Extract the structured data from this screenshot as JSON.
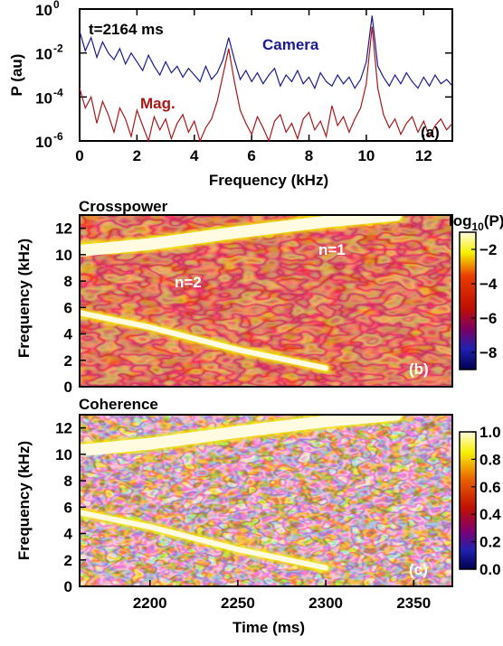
{
  "chart_data": [
    {
      "panel": "(a)",
      "type": "line",
      "annotation": "t=2164 ms",
      "xlabel": "Frequency (kHz)",
      "ylabel": "P (au)",
      "xlim": [
        0,
        13
      ],
      "ylim_log10": [
        -6,
        0
      ],
      "x_ticks": [
        "0",
        "2",
        "4",
        "6",
        "8",
        "10",
        "12"
      ],
      "y_ticks": [
        {
          "base": "10",
          "exp": "0"
        },
        {
          "base": "10",
          "exp": "-2"
        },
        {
          "base": "10",
          "exp": "-4"
        },
        {
          "base": "10",
          "exp": "-6"
        }
      ],
      "scale": "log",
      "series": [
        {
          "name": "Camera",
          "color": "#1a1a8c",
          "x": [
            0,
            0.2,
            0.4,
            0.6,
            0.8,
            1.0,
            1.2,
            1.4,
            1.6,
            1.8,
            2.0,
            2.2,
            2.4,
            2.6,
            2.8,
            3.0,
            3.2,
            3.4,
            3.6,
            3.8,
            4.0,
            4.2,
            4.4,
            4.6,
            4.8,
            5.0,
            5.2,
            5.4,
            5.6,
            5.8,
            6.0,
            6.2,
            6.4,
            6.6,
            6.8,
            7.0,
            7.2,
            7.4,
            7.6,
            7.8,
            8.0,
            8.2,
            8.4,
            8.6,
            8.8,
            9.0,
            9.2,
            9.4,
            9.6,
            9.8,
            10.0,
            10.2,
            10.4,
            10.6,
            10.8,
            11.0,
            11.2,
            11.4,
            11.6,
            11.8,
            12.0,
            12.2,
            12.4,
            12.6,
            12.8,
            13.0
          ],
          "y_log10": [
            -1.0,
            -1.9,
            -1.3,
            -2.2,
            -1.5,
            -2.0,
            -2.3,
            -1.8,
            -2.5,
            -2.0,
            -2.4,
            -2.8,
            -2.1,
            -2.6,
            -3.0,
            -2.4,
            -2.9,
            -2.6,
            -3.1,
            -2.7,
            -3.0,
            -3.3,
            -2.6,
            -3.2,
            -2.9,
            -2.3,
            -1.3,
            -2.3,
            -3.2,
            -2.8,
            -3.3,
            -2.9,
            -3.4,
            -3.0,
            -2.7,
            -3.5,
            -3.0,
            -3.3,
            -2.8,
            -3.4,
            -3.1,
            -3.6,
            -2.9,
            -3.3,
            -3.5,
            -3.0,
            -3.4,
            -3.1,
            -3.6,
            -3.2,
            -2.4,
            -0.3,
            -2.6,
            -3.1,
            -3.5,
            -3.0,
            -3.4,
            -2.9,
            -3.3,
            -3.6,
            -3.1,
            -3.5,
            -3.0,
            -3.4,
            -3.2,
            -3.5
          ]
        },
        {
          "name": "Mag.",
          "color": "#a81818",
          "x": [
            0,
            0.2,
            0.4,
            0.6,
            0.8,
            1.0,
            1.2,
            1.4,
            1.6,
            1.8,
            2.0,
            2.2,
            2.4,
            2.6,
            2.8,
            3.0,
            3.2,
            3.4,
            3.6,
            3.8,
            4.0,
            4.2,
            4.4,
            4.6,
            4.8,
            5.0,
            5.2,
            5.4,
            5.6,
            5.8,
            6.0,
            6.2,
            6.4,
            6.6,
            6.8,
            7.0,
            7.2,
            7.4,
            7.6,
            7.8,
            8.0,
            8.2,
            8.4,
            8.6,
            8.8,
            9.0,
            9.2,
            9.4,
            9.6,
            9.8,
            10.0,
            10.2,
            10.4,
            10.6,
            10.8,
            11.0,
            11.2,
            11.4,
            11.6,
            11.8,
            12.0,
            12.2,
            12.4,
            12.6,
            12.8,
            13.0
          ],
          "y_log10": [
            -3.6,
            -4.5,
            -4.0,
            -5.2,
            -4.2,
            -4.8,
            -5.6,
            -4.5,
            -5.0,
            -5.8,
            -4.6,
            -5.3,
            -6.0,
            -4.9,
            -5.5,
            -5.0,
            -5.9,
            -5.2,
            -4.8,
            -5.6,
            -5.1,
            -6.0,
            -5.4,
            -5.0,
            -4.2,
            -3.0,
            -1.8,
            -3.3,
            -4.6,
            -5.2,
            -5.7,
            -4.9,
            -5.4,
            -6.0,
            -5.1,
            -4.8,
            -5.6,
            -5.2,
            -5.9,
            -5.0,
            -4.7,
            -5.5,
            -5.1,
            -5.8,
            -4.4,
            -5.3,
            -4.9,
            -5.6,
            -5.0,
            -4.5,
            -3.4,
            -0.8,
            -3.6,
            -4.8,
            -5.4,
            -5.0,
            -5.7,
            -5.2,
            -4.9,
            -5.6,
            -5.1,
            -5.8,
            -5.3,
            -5.0,
            -5.5,
            -5.2
          ]
        }
      ]
    },
    {
      "panel": "(b)",
      "type": "heatmap",
      "title": "Crosspower",
      "xlim": [
        2160,
        2372
      ],
      "ylim": [
        0,
        13
      ],
      "ylabel": "Frequency (kHz)",
      "y_ticks": [
        "0",
        "2",
        "4",
        "6",
        "8",
        "10",
        "12"
      ],
      "colorbar_label": {
        "prefix": "log",
        "sub": "10",
        "suffix": "(P)"
      },
      "colorbar_ticks": [
        "−2",
        "−4",
        "−6",
        "−8"
      ],
      "colorbar_range": [
        -9,
        -1
      ],
      "annotations": [
        "n=1",
        "n=2"
      ],
      "modes": [
        {
          "label": "n=1",
          "time": [
            2160,
            2200,
            2250,
            2300,
            2340
          ],
          "freq": [
            10.3,
            10.8,
            11.7,
            12.5,
            13.0
          ]
        },
        {
          "label": "n=2",
          "time": [
            2160,
            2200,
            2250,
            2300
          ],
          "freq": [
            5.6,
            4.5,
            2.8,
            1.4
          ]
        }
      ]
    },
    {
      "panel": "(c)",
      "type": "heatmap",
      "title": "Coherence",
      "xlim": [
        2160,
        2372
      ],
      "ylim": [
        0,
        13
      ],
      "xlabel": "Time (ms)",
      "ylabel": "Frequency (kHz)",
      "x_ticks": [
        "2200",
        "2250",
        "2300",
        "2350"
      ],
      "y_ticks": [
        "0",
        "2",
        "4",
        "6",
        "8",
        "10",
        "12"
      ],
      "colorbar_ticks": [
        "1.0",
        "0.8",
        "0.6",
        "0.4",
        "0.2",
        "0.0"
      ],
      "colorbar_range": [
        0,
        1
      ],
      "modes": [
        {
          "label": "n=1",
          "time": [
            2160,
            2200,
            2250,
            2300,
            2340
          ],
          "freq": [
            10.3,
            10.8,
            11.7,
            12.5,
            13.0
          ]
        },
        {
          "label": "n=2",
          "time": [
            2160,
            2200,
            2250,
            2300
          ],
          "freq": [
            5.6,
            4.5,
            2.8,
            1.4
          ]
        }
      ]
    }
  ]
}
